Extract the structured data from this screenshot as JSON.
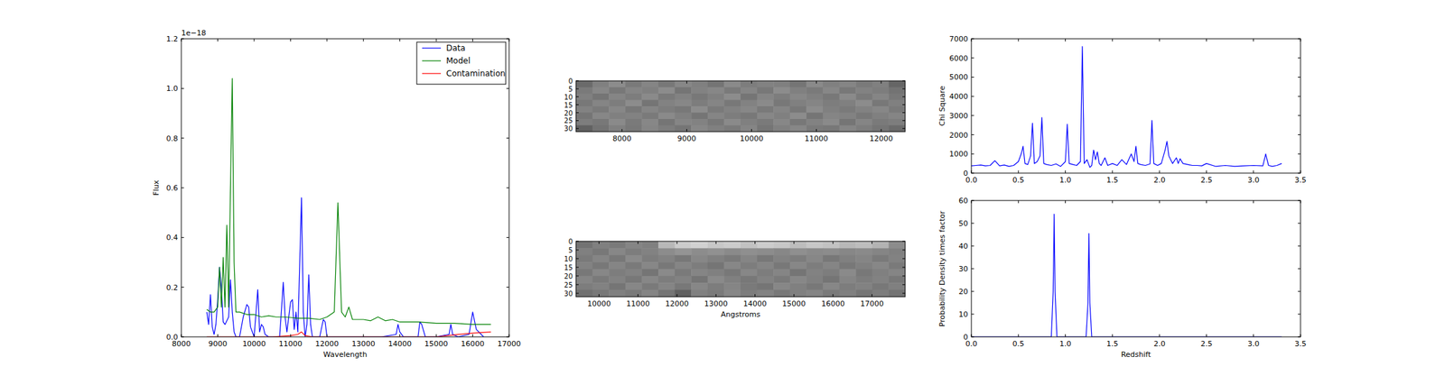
{
  "chart_data": [
    {
      "type": "line",
      "xlabel": "Wavelength",
      "ylabel": "Flux",
      "y_scale_label": "1e−18",
      "xlim": [
        8000,
        17000
      ],
      "ylim": [
        0,
        1.2
      ],
      "xticks": [
        8000,
        9000,
        10000,
        11000,
        12000,
        13000,
        14000,
        15000,
        16000,
        17000
      ],
      "yticks": [
        {
          "value": 0,
          "label": "0.0"
        },
        0.2,
        0.4,
        0.6,
        0.8,
        {
          "value": 1,
          "label": "1.0"
        },
        1.2
      ],
      "grid": false,
      "legend": "upper right",
      "series": [
        {
          "name": "Data",
          "color": "#0000ff",
          "x": [
            8700,
            8750,
            8800,
            8850,
            8900,
            8950,
            9000,
            9050,
            9100,
            9150,
            9200,
            9300,
            9350,
            9400,
            9450,
            9500,
            9600,
            9700,
            9800,
            9850,
            9900,
            10000,
            10100,
            10150,
            10200,
            10250,
            10300,
            10400,
            10500,
            10600,
            10700,
            10800,
            10850,
            10900,
            11000,
            11050,
            11100,
            11150,
            11200,
            11300,
            11350,
            11400,
            11450,
            11500,
            11550,
            11600,
            11700,
            11800,
            11900,
            11950,
            12000,
            12100,
            12500,
            13000,
            13500,
            13900,
            13950,
            14000,
            14100,
            14500,
            14550,
            14600,
            14700,
            15000,
            15350,
            15400,
            15450,
            15600,
            15900,
            16000,
            16100,
            16300
          ],
          "values": [
            0.1,
            0.05,
            0.17,
            0.04,
            0.01,
            0.05,
            0.15,
            0.28,
            0.2,
            0.06,
            0.05,
            0.08,
            0.23,
            0.1,
            0.02,
            0,
            0,
            0.08,
            0.13,
            0.12,
            0.04,
            0,
            0.19,
            0.02,
            0.05,
            0.04,
            0.01,
            0,
            0,
            0,
            0,
            0.22,
            0.08,
            0.02,
            0.14,
            0.15,
            0.03,
            0.1,
            0.02,
            0.56,
            0.1,
            0,
            0.05,
            0.25,
            0.05,
            0,
            0,
            0,
            0.07,
            0.06,
            0,
            0,
            0,
            0,
            0,
            0.01,
            0.05,
            0.02,
            0,
            0,
            0.06,
            0.05,
            0,
            0,
            0.01,
            0.05,
            0.01,
            0,
            0.01,
            0.1,
            0.03,
            0
          ]
        },
        {
          "name": "Model",
          "color": "#008000",
          "x": [
            8700,
            8800,
            8900,
            9000,
            9050,
            9100,
            9150,
            9200,
            9250,
            9300,
            9350,
            9400,
            9450,
            9500,
            9600,
            9800,
            10000,
            10200,
            10400,
            10600,
            10800,
            11000,
            11200,
            11500,
            11800,
            12000,
            12200,
            12300,
            12400,
            12500,
            12600,
            12700,
            12800,
            13000,
            13200,
            13400,
            13600,
            13800,
            14000,
            14500,
            15000,
            15500,
            16000,
            16500
          ],
          "values": [
            0.11,
            0.1,
            0.1,
            0.12,
            0.28,
            0.12,
            0.32,
            0.12,
            0.45,
            0.12,
            0.6,
            1.04,
            0.3,
            0.1,
            0.1,
            0.09,
            0.09,
            0.08,
            0.085,
            0.08,
            0.08,
            0.078,
            0.075,
            0.075,
            0.07,
            0.08,
            0.1,
            0.54,
            0.1,
            0.08,
            0.12,
            0.07,
            0.07,
            0.07,
            0.065,
            0.08,
            0.065,
            0.07,
            0.06,
            0.06,
            0.055,
            0.055,
            0.05,
            0.05
          ]
        },
        {
          "name": "Contamination",
          "color": "#ff0000",
          "x": [
            8700,
            10500,
            11000,
            11200,
            11300,
            11400,
            11600,
            13000,
            15000,
            15600,
            16000,
            16500
          ],
          "values": [
            0,
            0,
            0.005,
            0.01,
            0.02,
            0.005,
            0,
            0,
            0,
            0.01,
            0.015,
            0.02
          ]
        }
      ]
    },
    {
      "type": "image",
      "xlim": [
        7290,
        12370
      ],
      "ylim": [
        32,
        0
      ],
      "xticks": [
        8000,
        9000,
        10000,
        11000,
        12000
      ],
      "yticks": [
        0,
        5,
        10,
        15,
        20,
        25,
        30
      ],
      "cells": [
        [
          0.42,
          0.5,
          0.55,
          0.48,
          0.52,
          0.47,
          0.53,
          0.5,
          0.46,
          0.54,
          0.49,
          0.51,
          0.5,
          0.46,
          0.54,
          0.5,
          0.52,
          0.48,
          0.5,
          0.4
        ],
        [
          0.48,
          0.53,
          0.47,
          0.52,
          0.5,
          0.55,
          0.46,
          0.51,
          0.53,
          0.48,
          0.52,
          0.47,
          0.55,
          0.5,
          0.48,
          0.53,
          0.47,
          0.51,
          0.49,
          0.45
        ],
        [
          0.5,
          0.46,
          0.52,
          0.49,
          0.54,
          0.48,
          0.51,
          0.47,
          0.5,
          0.55,
          0.46,
          0.52,
          0.49,
          0.53,
          0.5,
          0.47,
          0.54,
          0.48,
          0.52,
          0.47
        ],
        [
          0.47,
          0.52,
          0.49,
          0.55,
          0.46,
          0.51,
          0.53,
          0.49,
          0.52,
          0.47,
          0.51,
          0.54,
          0.47,
          0.5,
          0.52,
          0.49,
          0.5,
          0.55,
          0.47,
          0.5
        ],
        [
          0.51,
          0.48,
          0.53,
          0.47,
          0.52,
          0.49,
          0.47,
          0.55,
          0.48,
          0.51,
          0.53,
          0.48,
          0.52,
          0.47,
          0.55,
          0.5,
          0.48,
          0.51,
          0.53,
          0.48
        ],
        [
          0.46,
          0.53,
          0.5,
          0.51,
          0.48,
          0.54,
          0.5,
          0.46,
          0.52,
          0.49,
          0.47,
          0.53,
          0.5,
          0.55,
          0.46,
          0.52,
          0.51,
          0.47,
          0.5,
          0.52
        ],
        [
          0.49,
          0.47,
          0.54,
          0.48,
          0.53,
          0.46,
          0.52,
          0.51,
          0.47,
          0.54,
          0.5,
          0.48,
          0.53,
          0.47,
          0.51,
          0.54,
          0.46,
          0.52,
          0.48,
          0.49
        ],
        [
          0.38,
          0.45,
          0.5,
          0.47,
          0.52,
          0.49,
          0.46,
          0.53,
          0.5,
          0.48,
          0.52,
          0.46,
          0.5,
          0.53,
          0.48,
          0.47,
          0.52,
          0.49,
          0.46,
          0.42
        ]
      ]
    },
    {
      "type": "image",
      "xlabel": "Angstroms",
      "xlim": [
        9410,
        17850
      ],
      "ylim": [
        32,
        0
      ],
      "xticks": [
        10000,
        11000,
        12000,
        13000,
        14000,
        15000,
        16000,
        17000
      ],
      "yticks": [
        0,
        5,
        10,
        15,
        20,
        25,
        30
      ],
      "cells": [
        [
          0.45,
          0.5,
          0.48,
          0.52,
          0.5,
          0.72,
          0.8,
          0.82,
          0.78,
          0.8,
          0.76,
          0.8,
          0.78,
          0.74,
          0.78,
          0.76,
          0.72,
          0.74,
          0.7,
          0.55
        ],
        [
          0.5,
          0.47,
          0.53,
          0.49,
          0.51,
          0.55,
          0.58,
          0.55,
          0.57,
          0.54,
          0.56,
          0.55,
          0.53,
          0.56,
          0.54,
          0.55,
          0.53,
          0.54,
          0.52,
          0.5
        ],
        [
          0.48,
          0.52,
          0.47,
          0.54,
          0.49,
          0.51,
          0.47,
          0.53,
          0.5,
          0.48,
          0.52,
          0.47,
          0.51,
          0.49,
          0.53,
          0.47,
          0.5,
          0.52,
          0.48,
          0.51
        ],
        [
          0.51,
          0.47,
          0.52,
          0.48,
          0.53,
          0.47,
          0.52,
          0.49,
          0.46,
          0.53,
          0.49,
          0.52,
          0.47,
          0.53,
          0.49,
          0.52,
          0.47,
          0.5,
          0.53,
          0.48
        ],
        [
          0.47,
          0.53,
          0.49,
          0.51,
          0.46,
          0.54,
          0.48,
          0.52,
          0.5,
          0.47,
          0.53,
          0.49,
          0.52,
          0.46,
          0.51,
          0.49,
          0.54,
          0.47,
          0.5,
          0.52
        ],
        [
          0.52,
          0.48,
          0.51,
          0.47,
          0.53,
          0.49,
          0.51,
          0.46,
          0.54,
          0.5,
          0.47,
          0.51,
          0.48,
          0.53,
          0.5,
          0.46,
          0.52,
          0.49,
          0.51,
          0.47
        ],
        [
          0.49,
          0.51,
          0.46,
          0.53,
          0.48,
          0.52,
          0.47,
          0.53,
          0.49,
          0.52,
          0.48,
          0.46,
          0.53,
          0.5,
          0.47,
          0.53,
          0.49,
          0.51,
          0.47,
          0.5
        ],
        [
          0.44,
          0.47,
          0.5,
          0.48,
          0.52,
          0.46,
          0.38,
          0.5,
          0.48,
          0.53,
          0.49,
          0.51,
          0.47,
          0.5,
          0.52,
          0.48,
          0.5,
          0.46,
          0.49,
          0.45
        ]
      ]
    },
    {
      "type": "line",
      "ylabel": "Chi Square",
      "xlim": [
        0,
        3.5
      ],
      "ylim": [
        0,
        7000
      ],
      "xticks": [
        {
          "value": 0,
          "label": "0.0"
        },
        0.5,
        {
          "value": 1,
          "label": "1.0"
        },
        1.5,
        {
          "value": 2,
          "label": "2.0"
        },
        2.5,
        {
          "value": 3,
          "label": "3.0"
        },
        3.5
      ],
      "yticks": [
        0,
        1000,
        2000,
        3000,
        4000,
        5000,
        6000,
        7000
      ],
      "grid": false,
      "series": [
        {
          "color": "#0000ff",
          "x": [
            0,
            0.05,
            0.1,
            0.15,
            0.2,
            0.25,
            0.3,
            0.35,
            0.4,
            0.45,
            0.5,
            0.53,
            0.55,
            0.57,
            0.6,
            0.63,
            0.65,
            0.67,
            0.7,
            0.73,
            0.75,
            0.77,
            0.8,
            0.85,
            0.9,
            0.95,
            1.0,
            1.02,
            1.04,
            1.08,
            1.12,
            1.16,
            1.18,
            1.2,
            1.23,
            1.26,
            1.28,
            1.3,
            1.32,
            1.34,
            1.36,
            1.38,
            1.42,
            1.45,
            1.5,
            1.55,
            1.6,
            1.65,
            1.7,
            1.73,
            1.75,
            1.77,
            1.8,
            1.85,
            1.9,
            1.92,
            1.94,
            1.98,
            2.02,
            2.06,
            2.08,
            2.1,
            2.14,
            2.18,
            2.2,
            2.22,
            2.25,
            2.3,
            2.35,
            2.4,
            2.45,
            2.5,
            2.6,
            2.7,
            2.8,
            2.9,
            3.0,
            3.1,
            3.13,
            3.16,
            3.2,
            3.25,
            3.3
          ],
          "values": [
            380,
            400,
            420,
            380,
            400,
            650,
            380,
            420,
            350,
            400,
            600,
            1000,
            1400,
            500,
            450,
            900,
            2600,
            500,
            600,
            900,
            2900,
            500,
            450,
            400,
            480,
            350,
            600,
            2550,
            500,
            450,
            400,
            600,
            6600,
            500,
            700,
            300,
            400,
            1200,
            700,
            1100,
            500,
            400,
            800,
            400,
            500,
            400,
            700,
            450,
            1000,
            600,
            1400,
            500,
            450,
            400,
            480,
            2750,
            500,
            400,
            500,
            1200,
            1650,
            900,
            500,
            800,
            500,
            750,
            500,
            450,
            400,
            400,
            380,
            500,
            350,
            400,
            350,
            380,
            400,
            380,
            1000,
            400,
            350,
            400,
            500
          ]
        }
      ]
    },
    {
      "type": "line",
      "xlabel": "Redshift",
      "ylabel": "Probability Density times factor",
      "xlim": [
        0,
        3.5
      ],
      "ylim": [
        0,
        60
      ],
      "xticks": [
        {
          "value": 0,
          "label": "0.0"
        },
        0.5,
        {
          "value": 1,
          "label": "1.0"
        },
        1.5,
        {
          "value": 2,
          "label": "2.0"
        },
        2.5,
        {
          "value": 3,
          "label": "3.0"
        },
        3.5
      ],
      "yticks": [
        0,
        10,
        20,
        30,
        40,
        50,
        60
      ],
      "grid": false,
      "series": [
        {
          "color": "#0000ff",
          "x": [
            0,
            0.85,
            0.87,
            0.88,
            0.89,
            0.91,
            1.22,
            1.24,
            1.25,
            1.26,
            1.28,
            3.3
          ],
          "values": [
            0,
            0,
            20,
            54,
            20,
            0,
            0,
            15,
            45.5,
            15,
            0,
            0
          ]
        }
      ]
    }
  ]
}
